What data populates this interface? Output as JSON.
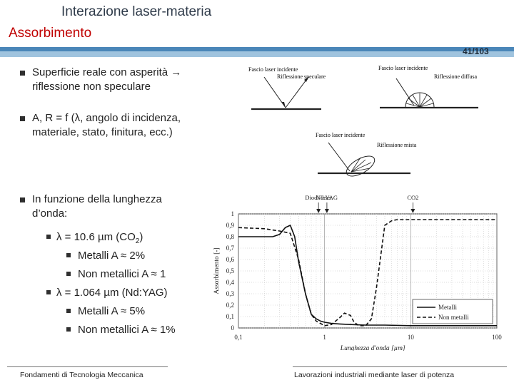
{
  "header": {
    "title_line1": "Interazione laser-materia",
    "title_line2": "Assorbimento",
    "page_number": "41/103"
  },
  "bullets": [
    {
      "text_line1": "Superficie reale con asperità → ",
      "text_line2": "riflessione non speculare"
    },
    {
      "text_line1": "A, R = f (λ, angolo di incidenza,",
      "text_line2": "materiale, stato, finitura, ecc.)"
    },
    {
      "text_line1": "In funzione della lunghezza",
      "text_line2": "d’onda:"
    }
  ],
  "sub_bullets": [
    {
      "prefix": "λ = 10.6 µm (CO",
      "subscript": "2",
      "suffix": ")",
      "items": [
        "Metalli A ≈ 2%",
        "Non metallici A ≈ 1"
      ]
    },
    {
      "prefix": "λ = 1.064 µm (Nd:YAG)",
      "subscript": "",
      "suffix": "",
      "items": [
        "Metalli A ≈ 5%",
        "Non metallici A ≈ 1%"
      ]
    }
  ],
  "reflection_figures": {
    "specular": {
      "beam_label": "Fascio laser incidente",
      "label": "Riflessione speculare"
    },
    "diffuse": {
      "beam_label": "Fascio laser incidente",
      "label": "Riflessione diffusa"
    },
    "mixed": {
      "beam_label": "Fascio laser incidente",
      "label": "Riflessione mista"
    }
  },
  "chart_data": {
    "type": "line",
    "xscale": "log",
    "xlim": [
      0.1,
      100
    ],
    "ylim": [
      0,
      1
    ],
    "xticks": [
      "0,1",
      "1",
      "10",
      "100"
    ],
    "yticks": [
      "0",
      "0,1",
      "0,2",
      "0,3",
      "0,4",
      "0,5",
      "0,6",
      "0,7",
      "0,8",
      "0,9",
      "1"
    ],
    "xlabel": "Lunghezza d'onda [µm]",
    "ylabel": "Assorbimento [-]",
    "grid": true,
    "legend_position": "bottom-right",
    "markers": [
      {
        "label": "Diodi laser",
        "x": 0.85
      },
      {
        "label": "Nd:YAG",
        "x": 1.064
      },
      {
        "label": "CO2",
        "x": 10.6
      }
    ],
    "series": [
      {
        "name": "Metalli",
        "style": "solid",
        "color": "#111111",
        "x": [
          0.1,
          0.15,
          0.2,
          0.25,
          0.3,
          0.35,
          0.4,
          0.45,
          0.5,
          0.6,
          0.7,
          0.8,
          0.9,
          1,
          1.2,
          1.5,
          2,
          3,
          5,
          10,
          20,
          50,
          100
        ],
        "y": [
          0.8,
          0.8,
          0.8,
          0.8,
          0.82,
          0.88,
          0.9,
          0.8,
          0.58,
          0.3,
          0.12,
          0.08,
          0.06,
          0.05,
          0.04,
          0.035,
          0.03,
          0.025,
          0.025,
          0.02,
          0.02,
          0.02,
          0.02
        ]
      },
      {
        "name": "Non metalli",
        "style": "dashed",
        "color": "#111111",
        "x": [
          0.1,
          0.2,
          0.3,
          0.4,
          0.5,
          0.6,
          0.7,
          0.8,
          1,
          1.2,
          1.5,
          1.7,
          2,
          2.2,
          2.5,
          3,
          3.5,
          4,
          5,
          6,
          7,
          8,
          10,
          20,
          50,
          100
        ],
        "y": [
          0.88,
          0.87,
          0.85,
          0.83,
          0.6,
          0.3,
          0.12,
          0.06,
          0.02,
          0.03,
          0.09,
          0.13,
          0.11,
          0.05,
          0.02,
          0.02,
          0.08,
          0.35,
          0.9,
          0.94,
          0.95,
          0.95,
          0.95,
          0.95,
          0.95,
          0.95
        ]
      }
    ]
  },
  "footer": {
    "left": "Fondamenti di Tecnologia Meccanica",
    "right": "Lavorazioni industriali mediante laser di potenza"
  }
}
